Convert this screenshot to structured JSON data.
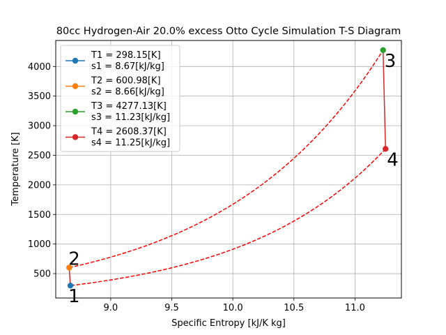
{
  "chart_data": {
    "type": "line",
    "title": "80cc Hydrogen-Air 20.0% excess Otto Cycle Simulation T-S Diagram",
    "xlabel": "Specific Entropy [kJ/K kg]",
    "ylabel": "Temperature [K]",
    "xlim": [
      8.55,
      11.38
    ],
    "ylim": [
      88,
      4440
    ],
    "xticks": [
      9.0,
      9.5,
      10.0,
      10.5,
      11.0
    ],
    "xtick_labels": [
      "9.0",
      "9.5",
      "10.0",
      "10.5",
      "11.0"
    ],
    "yticks": [
      500,
      1000,
      1500,
      2000,
      2500,
      3000,
      3500,
      4000
    ],
    "ytick_labels": [
      "500",
      "1000",
      "1500",
      "2000",
      "2500",
      "3000",
      "3500",
      "4000"
    ],
    "grid": true,
    "legend_position": "top-left",
    "series": [
      {
        "name": "T1 = 298.15[K]",
        "name_line2": "s1 = 8.67[kJ/kg]",
        "x": [
          8.67
        ],
        "y": [
          298.15
        ],
        "color": "#1f77b4",
        "label": "1"
      },
      {
        "name": "T2 = 600.98[K]",
        "name_line2": "s2 = 8.66[kJ/kg]",
        "x": [
          8.66
        ],
        "y": [
          600.98
        ],
        "color": "#ff7f0e",
        "label": "2"
      },
      {
        "name": "T3 = 4277.13[K]",
        "name_line2": "s3 = 11.23[kJ/kg]",
        "x": [
          11.23
        ],
        "y": [
          4277.13
        ],
        "color": "#2ca02c",
        "label": "3"
      },
      {
        "name": "T4 = 2608.37[K]",
        "name_line2": "s4 = 11.25[kJ/kg]",
        "x": [
          11.25
        ],
        "y": [
          2608.37
        ],
        "color": "#d62728",
        "label": "4"
      }
    ],
    "connections": [
      {
        "from": 0,
        "to": 1,
        "style": "solid",
        "color": "#d62728"
      },
      {
        "from": 1,
        "to": 2,
        "style": "dashed-curve",
        "color": "#ff0000"
      },
      {
        "from": 2,
        "to": 3,
        "style": "solid",
        "color": "#d62728"
      },
      {
        "from": 3,
        "to": 0,
        "style": "dashed-curve",
        "color": "#ff0000"
      }
    ]
  }
}
